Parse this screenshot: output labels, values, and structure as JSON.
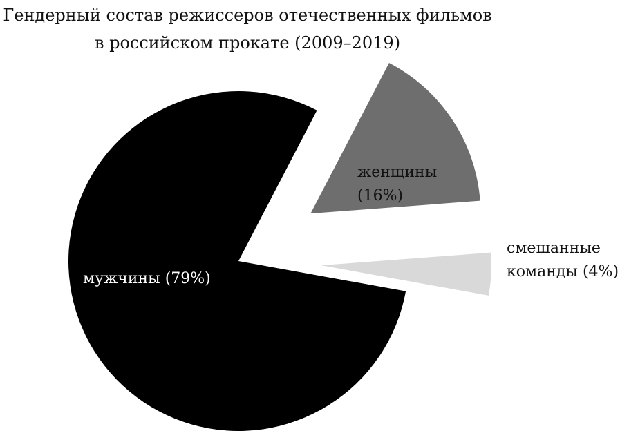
{
  "chart_data": {
    "type": "pie",
    "title": "Гендерный состав режиссеров отечественных фильмов в российском прокате (2009–2019)",
    "categories": [
      "мужчины",
      "женщины",
      "смешанные команды"
    ],
    "values": [
      79,
      16,
      4
    ],
    "value_labels": [
      "(79%)",
      "(16%)",
      "(4%)"
    ],
    "colors": [
      "#000000",
      "#6e6e6e",
      "#d9d9d9"
    ]
  }
}
